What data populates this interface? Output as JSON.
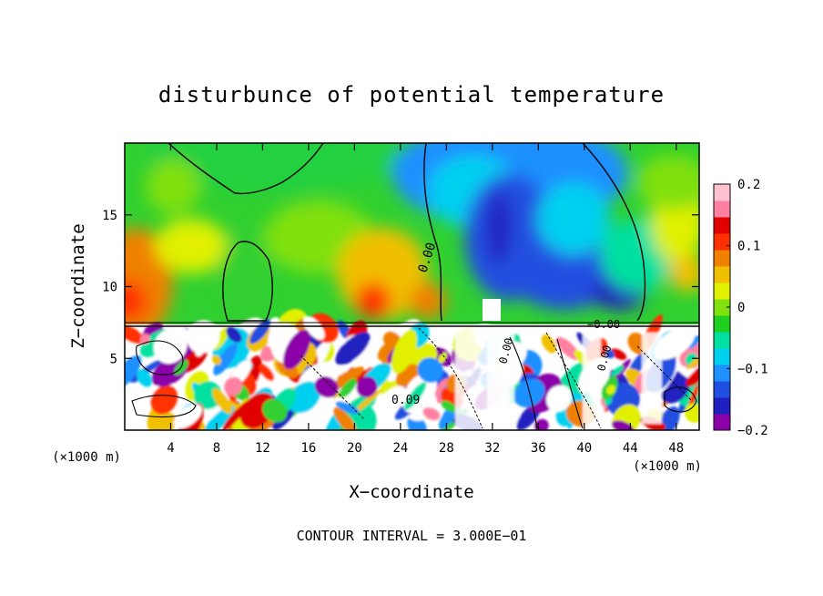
{
  "chart_data": {
    "type": "heatmap",
    "title": "disturbunce of potential temperature",
    "xlabel": "X−coordinate",
    "ylabel": "Z−coordinate",
    "x_unit_left": "(×1000 m)",
    "x_unit_right": "(×1000 m)",
    "footer": "CONTOUR INTERVAL = 3.000E−01",
    "xlim": [
      0,
      50
    ],
    "ylim": [
      0,
      20
    ],
    "x_ticks": [
      4,
      8,
      12,
      16,
      20,
      24,
      28,
      32,
      36,
      40,
      44,
      48
    ],
    "x_tick_labels": [
      "4",
      "8",
      "12",
      "16",
      "20",
      "24",
      "28",
      "32",
      "36",
      "40",
      "44",
      "48"
    ],
    "y_ticks": [
      5,
      10,
      15
    ],
    "y_tick_labels": [
      "5",
      "10",
      "15"
    ],
    "colorbar": {
      "min": -0.2,
      "max": 0.2,
      "ticks": [
        0.2,
        0.1,
        0,
        -0.1,
        -0.2
      ],
      "tick_labels": [
        "0.2",
        "0.1",
        "0",
        "−0.1",
        "−0.2"
      ],
      "colors": [
        "#8B00A8",
        "#2020C0",
        "#2050E0",
        "#1E90FF",
        "#00D0F0",
        "#00E0A0",
        "#20D020",
        "#80E010",
        "#E0F000",
        "#F0C000",
        "#F08000",
        "#FF3000",
        "#E00000",
        "#FF80A0",
        "#FFC0D0"
      ]
    },
    "contour_labels": [
      "0.00",
      "0.00",
      "0.09",
      "0.00",
      "−0.00"
    ],
    "grid": false
  }
}
